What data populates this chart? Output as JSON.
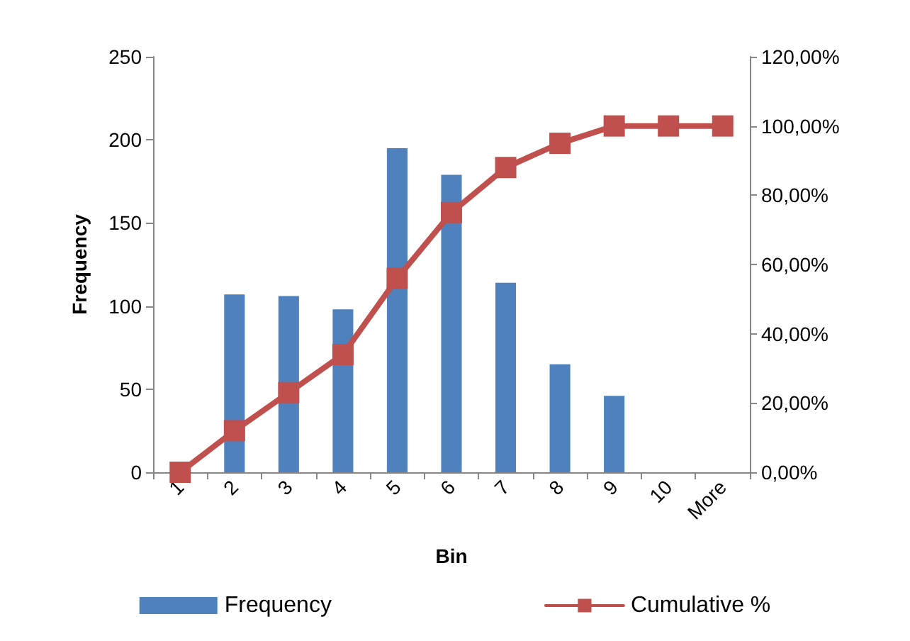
{
  "chart_data": {
    "type": "bar",
    "xlabel": "Bin",
    "ylabel": "Frequency",
    "categories": [
      "1",
      "2",
      "3",
      "4",
      "5",
      "6",
      "7",
      "8",
      "9",
      "10",
      "More"
    ],
    "series": [
      {
        "name": "Frequency",
        "color": "#4f81bd",
        "values": [
          0,
          107,
          106,
          98,
          195,
          179,
          114,
          65,
          46,
          0,
          0
        ]
      },
      {
        "name": "Cumulative %",
        "type": "line",
        "axis": "y2",
        "color": "#c0504d",
        "marker": "square",
        "values": [
          0,
          12,
          23,
          34,
          56,
          75,
          88,
          95,
          100,
          100,
          100
        ]
      }
    ],
    "ylim": [
      0,
      250
    ],
    "yticks": [
      0,
      50,
      100,
      150,
      200,
      250
    ],
    "y2lim": [
      0,
      120
    ],
    "y2ticks": [
      {
        "value": 0,
        "label": "0,00%"
      },
      {
        "value": 20,
        "label": "20,00%"
      },
      {
        "value": 40,
        "label": "40,00%"
      },
      {
        "value": 60,
        "label": "60,00%"
      },
      {
        "value": 80,
        "label": "80,00%"
      },
      {
        "value": 100,
        "label": "100,00%"
      },
      {
        "value": 120,
        "label": "120,00%"
      }
    ],
    "grid": false,
    "legend": "bottom"
  }
}
